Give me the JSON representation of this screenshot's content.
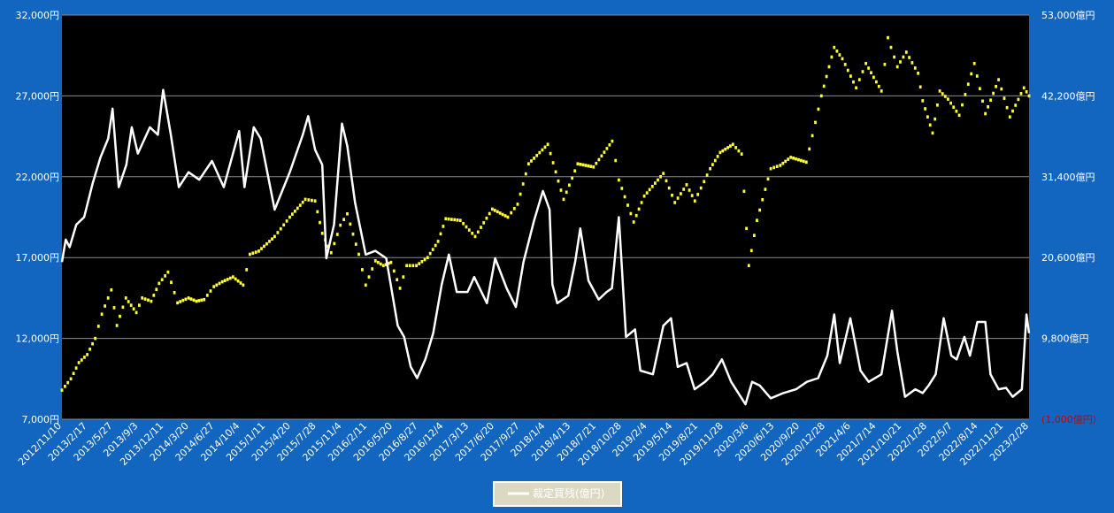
{
  "chart_data": {
    "type": "line",
    "title": "",
    "legend": {
      "placement": "bottom-center",
      "label": "裁定買残(億円)"
    },
    "grid": true,
    "colors": {
      "background": "#1266bf",
      "plot": "#000000",
      "price": "#ffff33",
      "arbitrage": "#ffffff",
      "negative_tick": "#cc0000"
    },
    "left_axis": {
      "ylim": [
        7000,
        32000
      ],
      "ticks": [
        {
          "value": 7000,
          "label": "7,000円"
        },
        {
          "value": 12000,
          "label": "12,000円"
        },
        {
          "value": 17000,
          "label": "17,000円"
        },
        {
          "value": 22000,
          "label": "22,000円"
        },
        {
          "value": 27000,
          "label": "27,000円"
        },
        {
          "value": 32000,
          "label": "32,000円"
        }
      ]
    },
    "right_axis": {
      "ylim": [
        -1000,
        53000
      ],
      "ticks": [
        {
          "value": -1000,
          "label": "(1,000億円)",
          "negative": true
        },
        {
          "value": 9800,
          "label": "9,800億円",
          "negative": false
        },
        {
          "value": 20600,
          "label": "20,600億円",
          "negative": false
        },
        {
          "value": 31400,
          "label": "31,400億円",
          "negative": false
        },
        {
          "value": 42200,
          "label": "42,200億円",
          "negative": false
        },
        {
          "value": 53000,
          "label": "53,000億円",
          "negative": false
        }
      ]
    },
    "x_range": [
      "2012/11/10",
      "2023/3/20"
    ],
    "x_tick_labels": [
      "2012/11/10",
      "2013/2/17",
      "2013/5/27",
      "2013/9/3",
      "2013/12/11",
      "2014/3/20",
      "2014/6/27",
      "2014/10/4",
      "2015/1/11",
      "2015/4/20",
      "2015/7/28",
      "2015/11/4",
      "2016/2/11",
      "2016/5/20",
      "2016/8/27",
      "2016/12/4",
      "2017/3/13",
      "2017/6/20",
      "2017/9/27",
      "2018/1/4",
      "2018/4/13",
      "2018/7/21",
      "2018/10/28",
      "2019/2/4",
      "2019/5/14",
      "2019/8/21",
      "2019/11/28",
      "2020/3/6",
      "2020/6/13",
      "2020/9/20",
      "2020/12/28",
      "2021/4/6",
      "2021/7/14",
      "2021/10/21",
      "2022/1/28",
      "2022/5/7",
      "2022/8/14",
      "2022/11/21",
      "2023/2/28"
    ],
    "series": [
      {
        "name": "",
        "axis": "left",
        "style": "dots",
        "points": [
          [
            "2012/11/10",
            8800
          ],
          [
            "2012/12/15",
            9500
          ],
          [
            "2013/1/15",
            10500
          ],
          [
            "2013/2/17",
            11000
          ],
          [
            "2013/3/20",
            12000
          ],
          [
            "2013/4/15",
            13500
          ],
          [
            "2013/5/22",
            15000
          ],
          [
            "2013/6/13",
            12800
          ],
          [
            "2013/7/18",
            14500
          ],
          [
            "2013/8/28",
            13600
          ],
          [
            "2013/9/20",
            14500
          ],
          [
            "2013/10/25",
            14300
          ],
          [
            "2013/11/25",
            15400
          ],
          [
            "2013/12/30",
            16100
          ],
          [
            "2014/2/5",
            14200
          ],
          [
            "2014/3/20",
            14500
          ],
          [
            "2014/4/20",
            14300
          ],
          [
            "2014/5/20",
            14400
          ],
          [
            "2014/6/27",
            15200
          ],
          [
            "2014/7/30",
            15500
          ],
          [
            "2014/9/10",
            15800
          ],
          [
            "2014/10/20",
            15300
          ],
          [
            "2014/11/15",
            17200
          ],
          [
            "2014/12/20",
            17400
          ],
          [
            "2015/2/20",
            18300
          ],
          [
            "2015/4/20",
            19500
          ],
          [
            "2015/6/20",
            20600
          ],
          [
            "2015/7/28",
            20500
          ],
          [
            "2015/8/25",
            18500
          ],
          [
            "2015/9/29",
            17300
          ],
          [
            "2015/11/4",
            19000
          ],
          [
            "2015/12/1",
            19700
          ],
          [
            "2016/1/15",
            17200
          ],
          [
            "2016/2/11",
            15300
          ],
          [
            "2016/3/20",
            16800
          ],
          [
            "2016/4/20",
            16500
          ],
          [
            "2016/5/20",
            16700
          ],
          [
            "2016/6/24",
            15100
          ],
          [
            "2016/7/20",
            16500
          ],
          [
            "2016/8/27",
            16500
          ],
          [
            "2016/10/10",
            17000
          ],
          [
            "2016/11/20",
            18000
          ],
          [
            "2016/12/20",
            19400
          ],
          [
            "2017/2/15",
            19300
          ],
          [
            "2017/4/14",
            18300
          ],
          [
            "2017/6/20",
            20000
          ],
          [
            "2017/8/20",
            19500
          ],
          [
            "2017/9/27",
            20300
          ],
          [
            "2017/11/9",
            22800
          ],
          [
            "2018/1/23",
            24000
          ],
          [
            "2018/3/26",
            20600
          ],
          [
            "2018/5/20",
            22800
          ],
          [
            "2018/7/21",
            22600
          ],
          [
            "2018/10/2",
            24200
          ],
          [
            "2018/10/28",
            21800
          ],
          [
            "2018/12/25",
            19200
          ],
          [
            "2019/2/4",
            20800
          ],
          [
            "2019/4/20",
            22200
          ],
          [
            "2019/6/4",
            20400
          ],
          [
            "2019/7/20",
            21500
          ],
          [
            "2019/8/21",
            20500
          ],
          [
            "2019/10/20",
            22500
          ],
          [
            "2019/11/28",
            23500
          ],
          [
            "2020/1/17",
            24000
          ],
          [
            "2020/2/20",
            23400
          ],
          [
            "2020/3/19",
            16500
          ],
          [
            "2020/4/20",
            19300
          ],
          [
            "2020/6/13",
            22500
          ],
          [
            "2020/7/20",
            22700
          ],
          [
            "2020/8/30",
            23200
          ],
          [
            "2020/10/30",
            22900
          ],
          [
            "2020/12/28",
            27000
          ],
          [
            "2021/2/16",
            30000
          ],
          [
            "2021/3/20",
            29300
          ],
          [
            "2021/5/13",
            27500
          ],
          [
            "2021/6/20",
            29000
          ],
          [
            "2021/8/20",
            27300
          ],
          [
            "2021/9/14",
            30600
          ],
          [
            "2021/10/21",
            28800
          ],
          [
            "2021/11/25",
            29700
          ],
          [
            "2022/1/10",
            28400
          ],
          [
            "2022/1/28",
            26700
          ],
          [
            "2022/3/8",
            24700
          ],
          [
            "2022/4/5",
            27300
          ],
          [
            "2022/5/7",
            26800
          ],
          [
            "2022/6/20",
            25800
          ],
          [
            "2022/8/18",
            29000
          ],
          [
            "2022/9/30",
            25900
          ],
          [
            "2022/11/21",
            28000
          ],
          [
            "2023/1/4",
            25700
          ],
          [
            "2023/2/28",
            27500
          ],
          [
            "2023/3/20",
            27000
          ]
        ]
      },
      {
        "name": "裁定買残(億円)",
        "axis": "right",
        "style": "line",
        "points": [
          [
            "2012/11/10",
            20000
          ],
          [
            "2012/11/25",
            23000
          ],
          [
            "2012/12/10",
            22000
          ],
          [
            "2013/1/5",
            25000
          ],
          [
            "2013/2/5",
            26000
          ],
          [
            "2013/3/10",
            30500
          ],
          [
            "2013/4/10",
            34000
          ],
          [
            "2013/5/10",
            36500
          ],
          [
            "2013/5/27",
            40500
          ],
          [
            "2013/6/20",
            30000
          ],
          [
            "2013/7/20",
            33000
          ],
          [
            "2013/8/10",
            38000
          ],
          [
            "2013/9/3",
            34500
          ],
          [
            "2013/10/20",
            38000
          ],
          [
            "2013/11/20",
            37000
          ],
          [
            "2013/12/11",
            43000
          ],
          [
            "2014/1/10",
            37000
          ],
          [
            "2014/2/10",
            30000
          ],
          [
            "2014/3/20",
            32000
          ],
          [
            "2014/5/1",
            31000
          ],
          [
            "2014/6/20",
            33500
          ],
          [
            "2014/8/5",
            30000
          ],
          [
            "2014/10/4",
            37500
          ],
          [
            "2014/10/25",
            30000
          ],
          [
            "2014/11/30",
            38000
          ],
          [
            "2014/12/27",
            36500
          ],
          [
            "2015/2/20",
            27000
          ],
          [
            "2015/4/20",
            32000
          ],
          [
            "2015/6/10",
            37000
          ],
          [
            "2015/7/1",
            39500
          ],
          [
            "2015/7/28",
            35000
          ],
          [
            "2015/8/25",
            33000
          ],
          [
            "2015/9/10",
            20500
          ],
          [
            "2015/10/10",
            25000
          ],
          [
            "2015/11/10",
            38500
          ],
          [
            "2015/12/1",
            35500
          ],
          [
            "2015/12/31",
            28000
          ],
          [
            "2016/2/11",
            21000
          ],
          [
            "2016/3/20",
            21500
          ],
          [
            "2016/5/1",
            20500
          ],
          [
            "2016/6/15",
            11500
          ],
          [
            "2016/7/10",
            10000
          ],
          [
            "2016/8/5",
            6000
          ],
          [
            "2016/8/30",
            4500
          ],
          [
            "2016/10/1",
            7000
          ],
          [
            "2016/11/1",
            10500
          ],
          [
            "2016/12/4",
            17000
          ],
          [
            "2017/1/1",
            21000
          ],
          [
            "2017/2/1",
            16000
          ],
          [
            "2017/3/15",
            16000
          ],
          [
            "2017/4/10",
            18000
          ],
          [
            "2017/5/30",
            14500
          ],
          [
            "2017/7/1",
            20500
          ],
          [
            "2017/8/15",
            16500
          ],
          [
            "2017/9/20",
            14000
          ],
          [
            "2017/10/20",
            20000
          ],
          [
            "2017/11/30",
            25500
          ],
          [
            "2018/1/4",
            29500
          ],
          [
            "2018/1/30",
            27000
          ],
          [
            "2018/2/10",
            17000
          ],
          [
            "2018/3/1",
            14500
          ],
          [
            "2018/4/13",
            15500
          ],
          [
            "2018/5/10",
            20000
          ],
          [
            "2018/5/30",
            24500
          ],
          [
            "2018/7/1",
            17500
          ],
          [
            "2018/8/10",
            15000
          ],
          [
            "2018/9/10",
            16000
          ],
          [
            "2018/10/1",
            16500
          ],
          [
            "2018/10/28",
            26000
          ],
          [
            "2018/11/25",
            10000
          ],
          [
            "2018/12/30",
            11000
          ],
          [
            "2019/1/20",
            5500
          ],
          [
            "2019/3/10",
            5000
          ],
          [
            "2019/4/20",
            11500
          ],
          [
            "2019/5/20",
            12500
          ],
          [
            "2019/6/15",
            6000
          ],
          [
            "2019/7/20",
            6500
          ],
          [
            "2019/8/20",
            3000
          ],
          [
            "2019/9/30",
            4000
          ],
          [
            "2019/10/30",
            5000
          ],
          [
            "2019/12/5",
            7000
          ],
          [
            "2020/1/10",
            4000
          ],
          [
            "2020/3/6",
            1000
          ],
          [
            "2020/4/1",
            4000
          ],
          [
            "2020/5/1",
            3500
          ],
          [
            "2020/6/13",
            1800
          ],
          [
            "2020/8/1",
            2500
          ],
          [
            "2020/9/20",
            3000
          ],
          [
            "2020/11/1",
            4000
          ],
          [
            "2020/12/15",
            4500
          ],
          [
            "2021/1/20",
            7500
          ],
          [
            "2021/2/16",
            13000
          ],
          [
            "2021/3/10",
            6500
          ],
          [
            "2021/4/20",
            12500
          ],
          [
            "2021/5/30",
            5500
          ],
          [
            "2021/7/1",
            4000
          ],
          [
            "2021/8/20",
            5000
          ],
          [
            "2021/9/30",
            13500
          ],
          [
            "2021/10/21",
            8000
          ],
          [
            "2021/11/20",
            2000
          ],
          [
            "2021/12/30",
            3000
          ],
          [
            "2022/1/28",
            2500
          ],
          [
            "2022/2/20",
            3500
          ],
          [
            "2022/3/20",
            5000
          ],
          [
            "2022/4/20",
            12500
          ],
          [
            "2022/5/20",
            7500
          ],
          [
            "2022/6/10",
            7000
          ],
          [
            "2022/7/10",
            10000
          ],
          [
            "2022/8/1",
            7500
          ],
          [
            "2022/8/30",
            12000
          ],
          [
            "2022/9/30",
            12000
          ],
          [
            "2022/10/20",
            5000
          ],
          [
            "2022/11/21",
            3000
          ],
          [
            "2022/12/20",
            3200
          ],
          [
            "2023/1/15",
            2000
          ],
          [
            "2023/2/20",
            3000
          ],
          [
            "2023/3/10",
            13000
          ],
          [
            "2023/3/20",
            10500
          ]
        ]
      }
    ]
  }
}
